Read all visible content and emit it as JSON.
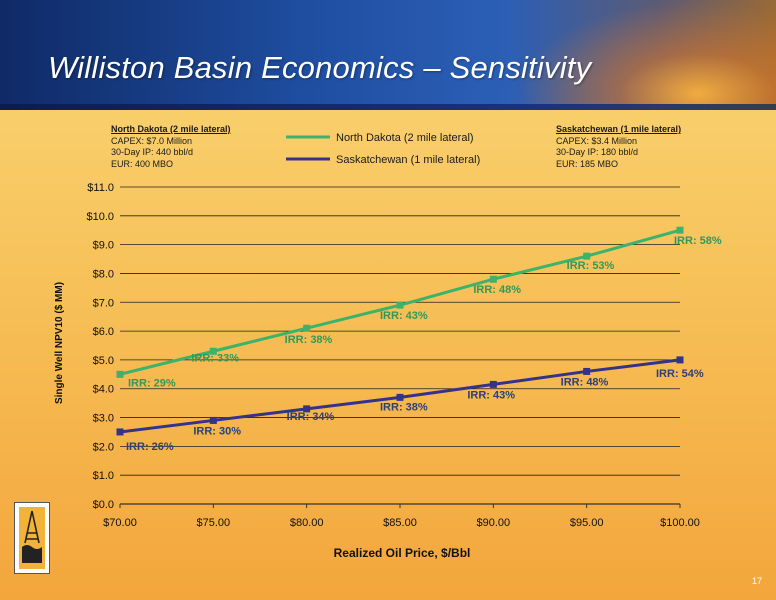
{
  "slide": {
    "title": "Williston Basin Economics – Sensitivity",
    "page_number": "17",
    "north_dakota_box": {
      "heading": "North Dakota (2 mile lateral)",
      "lines": [
        "CAPEX: $7.0 Million",
        "30-Day IP: 440 bbl/d",
        "EUR: 400 MBO"
      ]
    },
    "saskatchewan_box": {
      "heading": "Saskatchewan (1 mile lateral)",
      "lines": [
        "CAPEX: $3.4 Million",
        "30-Day IP: 180 bbl/d",
        "EUR: 185 MBO"
      ]
    }
  },
  "colors": {
    "north_dakota": "#3bb36a",
    "saskatchewan": "#33338a",
    "nd_label": "#2f9a58",
    "sk_label": "#2d3f7a"
  },
  "chart_data": {
    "type": "line",
    "xlabel": "Realized Oil Price, $/Bbl",
    "ylabel": "Single Well NPV10 ($ MM)",
    "x": [
      70,
      75,
      80,
      85,
      90,
      95,
      100
    ],
    "x_tick_labels": [
      "$70.00",
      "$75.00",
      "$80.00",
      "$85.00",
      "$90.00",
      "$95.00",
      "$100.00"
    ],
    "ylim": [
      0,
      11
    ],
    "y_ticks": [
      0,
      1,
      2,
      3,
      4,
      5,
      6,
      7,
      8,
      9,
      10,
      11
    ],
    "y_tick_labels": [
      "$0.0",
      "$1.0",
      "$2.0",
      "$3.0",
      "$4.0",
      "$5.0",
      "$6.0",
      "$7.0",
      "$8.0",
      "$9.0",
      "$10.0",
      "$11.0"
    ],
    "grid": "horizontal",
    "legend": "top-center",
    "series": [
      {
        "name": "North Dakota (2 mile lateral)",
        "values": [
          4.5,
          5.3,
          6.1,
          6.9,
          7.8,
          8.6,
          9.5
        ],
        "labels": [
          "IRR: 29%",
          "IRR: 33%",
          "IRR: 38%",
          "IRR: 43%",
          "IRR: 48%",
          "IRR: 53%",
          "IRR: 58%"
        ]
      },
      {
        "name": "Saskatchewan (1 mile lateral)",
        "values": [
          2.5,
          2.9,
          3.3,
          3.7,
          4.15,
          4.6,
          5.0
        ],
        "labels": [
          "IRR: 26%",
          "IRR: 30%",
          "IRR: 34%",
          "IRR: 38%",
          "IRR: 43%",
          "IRR: 48%",
          "IRR: 54%"
        ]
      }
    ]
  }
}
